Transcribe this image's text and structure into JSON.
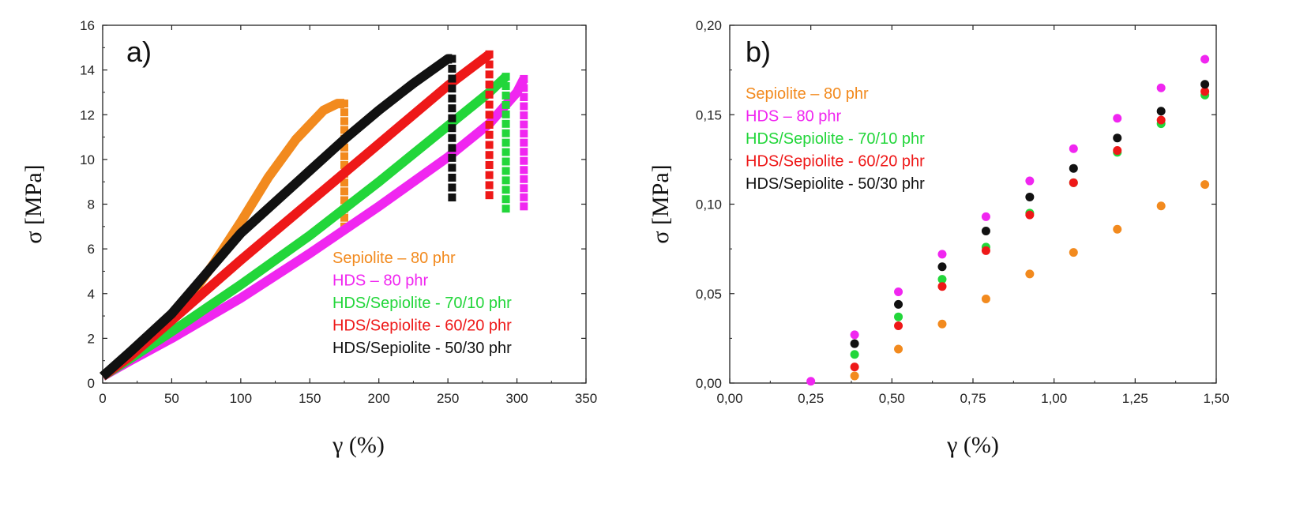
{
  "chart_data": [
    {
      "panel": "a)",
      "type": "line",
      "xlabel": "γ (%)",
      "ylabel": "σ [MPa]",
      "xlim": [
        0,
        350
      ],
      "ylim": [
        0,
        16
      ],
      "xticks": [
        0,
        50,
        100,
        150,
        200,
        250,
        300,
        350
      ],
      "yticks": [
        0,
        2,
        4,
        6,
        8,
        10,
        12,
        14,
        16
      ],
      "xtick_labels": [
        "0",
        "50",
        "100",
        "150",
        "200",
        "250",
        "300",
        "350"
      ],
      "ytick_labels": [
        "0",
        "2",
        "4",
        "6",
        "8",
        "10",
        "12",
        "14",
        "16"
      ],
      "legend_position": "bottom-right",
      "series": [
        {
          "name": "Sepiolite – 80 phr",
          "color": "#f28a1e",
          "x": [
            0,
            20,
            40,
            60,
            80,
            100,
            120,
            140,
            160,
            170,
            175
          ],
          "y": [
            0.3,
            1.2,
            2.3,
            3.6,
            5.3,
            7.2,
            9.2,
            10.9,
            12.2,
            12.5,
            12.5
          ],
          "break_x": 175,
          "break_to": 7.0
        },
        {
          "name": "HDS – 80 phr",
          "color": "#f026f0",
          "x": [
            0,
            20,
            50,
            100,
            150,
            200,
            250,
            280,
            300,
            305
          ],
          "y": [
            0.3,
            1.0,
            2.0,
            3.8,
            5.8,
            7.9,
            10.1,
            11.6,
            13.0,
            13.6
          ],
          "break_x": 305,
          "break_to": 7.9
        },
        {
          "name": "HDS/Sepiolite - 70/10 phr",
          "color": "#22d63a",
          "x": [
            0,
            20,
            50,
            100,
            150,
            200,
            250,
            280,
            292
          ],
          "y": [
            0.3,
            1.1,
            2.3,
            4.4,
            6.6,
            9.0,
            11.5,
            13.0,
            13.7
          ],
          "break_x": 292,
          "break_to": 7.8
        },
        {
          "name": "HDS/Sepiolite - 60/20 phr",
          "color": "#ee1818",
          "x": [
            0,
            20,
            50,
            100,
            150,
            200,
            250,
            280
          ],
          "y": [
            0.3,
            1.2,
            2.8,
            5.5,
            8.1,
            10.7,
            13.3,
            14.7
          ],
          "break_x": 280,
          "break_to": 8.4
        },
        {
          "name": "HDS/Sepiolite - 50/30 phr",
          "color": "#111111",
          "x": [
            0,
            20,
            50,
            100,
            150,
            175,
            200,
            225,
            250,
            253
          ],
          "y": [
            0.3,
            1.4,
            3.1,
            6.7,
            9.5,
            10.9,
            12.2,
            13.4,
            14.5,
            14.5
          ],
          "break_x": 253,
          "break_to": 8.3
        }
      ]
    },
    {
      "panel": "b)",
      "type": "scatter",
      "xlabel": "γ (%)",
      "ylabel": "σ [MPa]",
      "xlim": [
        0,
        1.5
      ],
      "ylim": [
        0,
        0.2
      ],
      "xticks": [
        0,
        0.25,
        0.5,
        0.75,
        1.0,
        1.25,
        1.5
      ],
      "yticks": [
        0,
        0.05,
        0.1,
        0.15,
        0.2
      ],
      "xtick_labels": [
        "0,00",
        "0,25",
        "0,50",
        "0,75",
        "1,00",
        "1,25",
        "1,50"
      ],
      "ytick_labels": [
        "0,00",
        "0,05",
        "0,10",
        "0,15",
        "0,20"
      ],
      "legend_position": "top-left",
      "series": [
        {
          "name": "Sepiolite – 80 phr",
          "color": "#f28a1e",
          "x": [
            0.385,
            0.52,
            0.655,
            0.79,
            0.925,
            1.06,
            1.195,
            1.33,
            1.465
          ],
          "y": [
            0.004,
            0.019,
            0.033,
            0.047,
            0.061,
            0.073,
            0.086,
            0.099,
            0.111
          ]
        },
        {
          "name": "HDS – 80 phr",
          "color": "#f026f0",
          "x": [
            0.25,
            0.385,
            0.52,
            0.655,
            0.79,
            0.925,
            1.06,
            1.195,
            1.33,
            1.465
          ],
          "y": [
            0.001,
            0.027,
            0.051,
            0.072,
            0.093,
            0.113,
            0.131,
            0.148,
            0.165,
            0.181
          ]
        },
        {
          "name": "HDS/Sepiolite - 70/10 phr",
          "color": "#22d63a",
          "x": [
            0.385,
            0.52,
            0.655,
            0.79,
            0.925,
            1.06,
            1.195,
            1.33,
            1.465
          ],
          "y": [
            0.016,
            0.037,
            0.058,
            0.076,
            0.095,
            0.112,
            0.129,
            0.145,
            0.161
          ]
        },
        {
          "name": "HDS/Sepiolite - 60/20 phr",
          "color": "#ee1818",
          "x": [
            0.385,
            0.52,
            0.655,
            0.79,
            0.925,
            1.06,
            1.195,
            1.33,
            1.465
          ],
          "y": [
            0.009,
            0.032,
            0.054,
            0.074,
            0.094,
            0.112,
            0.13,
            0.147,
            0.163
          ]
        },
        {
          "name": "HDS/Sepiolite - 50/30 phr",
          "color": "#111111",
          "x": [
            0.385,
            0.52,
            0.655,
            0.79,
            0.925,
            1.06,
            1.195,
            1.33,
            1.465
          ],
          "y": [
            0.022,
            0.044,
            0.065,
            0.085,
            0.104,
            0.12,
            0.137,
            0.152,
            0.167
          ]
        }
      ]
    }
  ]
}
